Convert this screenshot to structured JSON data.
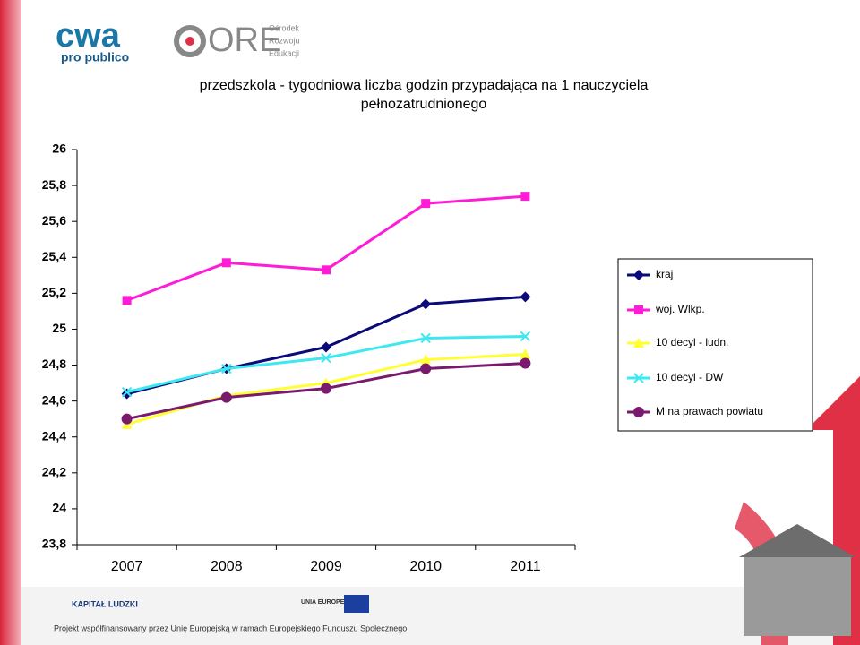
{
  "branding": {
    "logo_main": "cwa",
    "logo_sub": "pro publico",
    "ore": "ORE",
    "ore_lines": [
      "Ośrodek",
      "Rozwoju",
      "Edukacji"
    ],
    "footer_kl": "KAPITAŁ LUDZKI",
    "footer_ue": "UNIA EUROPEJSKA",
    "footer_text": "Projekt współfinansowany przez Unię Europejską w ramach Europejskiego Funduszu Społecznego"
  },
  "chart_data": {
    "type": "line",
    "title": [
      "przedszkola - tygodniowa liczba godzin przypadająca na 1 nauczyciela",
      "pełnozatrudnionego"
    ],
    "categories": [
      "2007",
      "2008",
      "2009",
      "2010",
      "2011"
    ],
    "ylim": [
      23.8,
      26
    ],
    "yticks": [
      {
        "value": 23.8,
        "label": "23,8"
      },
      24,
      {
        "value": 24.2,
        "label": "24,2"
      },
      {
        "value": 24.4,
        "label": "24,4"
      },
      {
        "value": 24.6,
        "label": "24,6"
      },
      {
        "value": 24.8,
        "label": "24,8"
      },
      25,
      {
        "value": 25.2,
        "label": "25,2"
      },
      {
        "value": 25.4,
        "label": "25,4"
      },
      {
        "value": 25.6,
        "label": "25,6"
      },
      {
        "value": 25.8,
        "label": "25,8"
      },
      26
    ],
    "legend": "right",
    "series": [
      {
        "name": "kraj",
        "color": "#0a0a78",
        "marker": "diamond",
        "values": [
          24.64,
          24.78,
          24.9,
          25.14,
          25.18
        ]
      },
      {
        "name": "woj. Wlkp.",
        "color": "#ff1cd6",
        "marker": "square",
        "values": [
          25.16,
          25.37,
          25.33,
          25.7,
          25.74
        ]
      },
      {
        "name": "10 decyl - ludn.",
        "color": "#ffff33",
        "marker": "triangle",
        "values": [
          24.47,
          24.63,
          24.7,
          24.83,
          24.86
        ]
      },
      {
        "name": "10 decyl - DW",
        "color": "#3ee8f0",
        "marker": "x",
        "values": [
          24.65,
          24.78,
          24.84,
          24.95,
          24.96
        ]
      },
      {
        "name": "M na prawach powiatu",
        "color": "#7a1a6e",
        "marker": "circle",
        "values": [
          24.5,
          24.62,
          24.67,
          24.78,
          24.81
        ]
      }
    ]
  }
}
